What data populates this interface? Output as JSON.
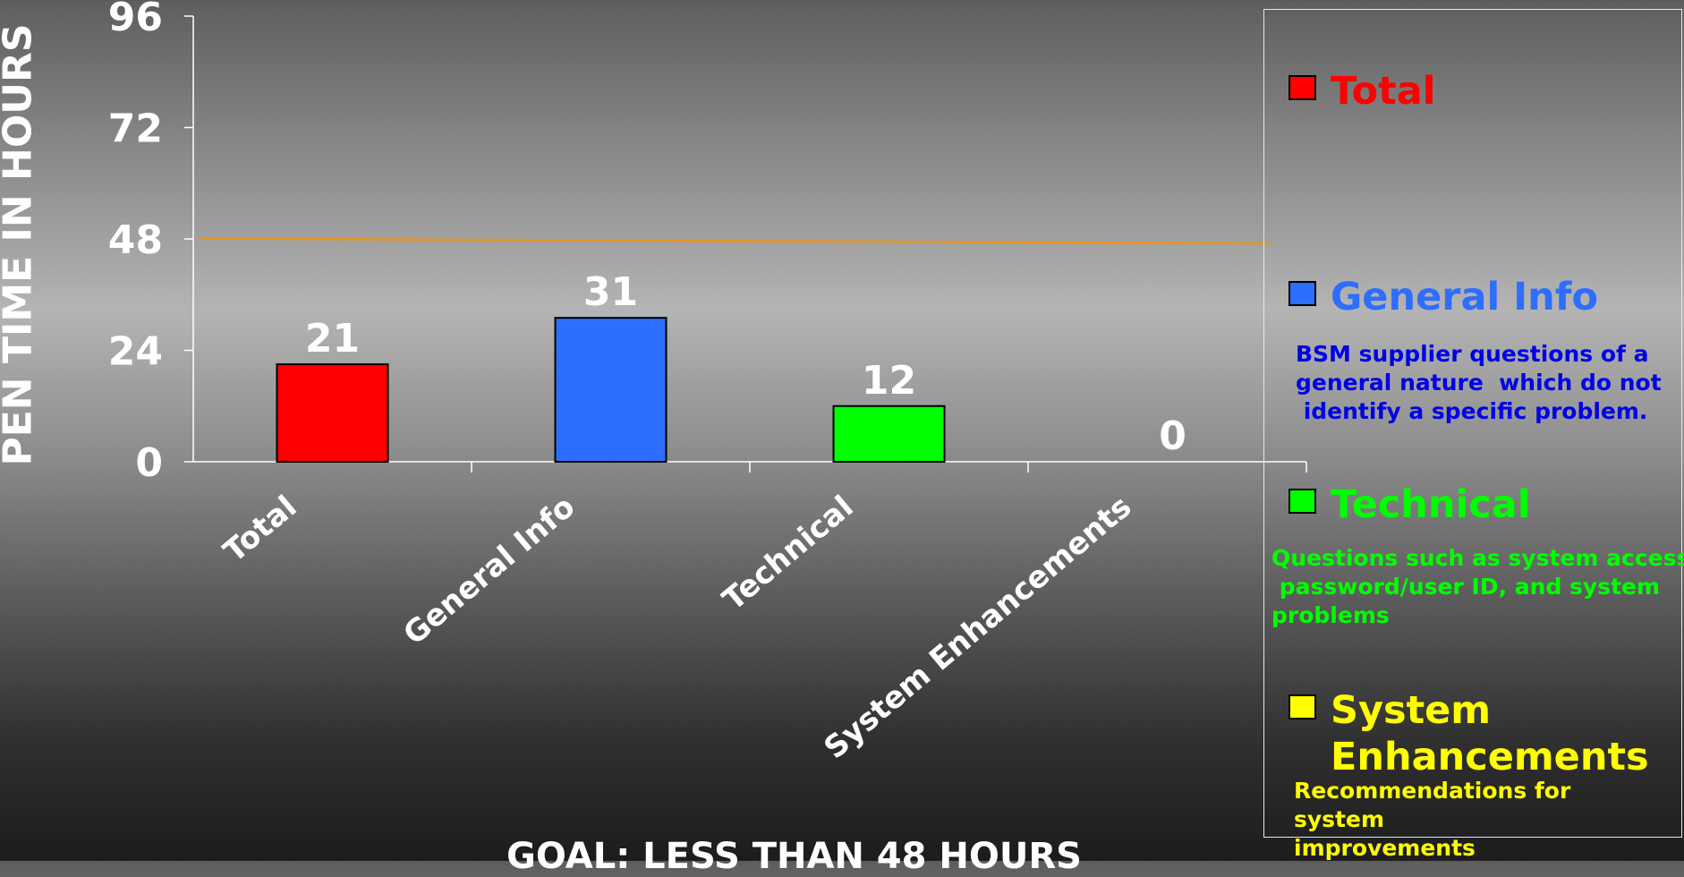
{
  "chart_data": {
    "type": "bar",
    "categories": [
      "Total",
      "General Info",
      "Technical",
      "System Enhancements"
    ],
    "values": [
      21,
      31,
      12,
      0
    ],
    "data_labels": [
      "21",
      "31",
      "12",
      "0"
    ],
    "colors": [
      "#ff0000",
      "#2d6eff",
      "#00ff00",
      "#ffff00"
    ],
    "ylim": [
      0,
      96
    ],
    "yticks": [
      "0",
      "24",
      "48",
      "72",
      "96"
    ],
    "ylabel": "PEN TIME IN HOURS",
    "goal_value": 48,
    "goal_line_color": "#e8931c",
    "grid": false,
    "legend_position": "right"
  },
  "legend": [
    {
      "label": "Total",
      "color": "#ff0000",
      "description": "",
      "desc_color": "#ff0000"
    },
    {
      "label": "General Info",
      "color": "#2d6eff",
      "description": "BSM supplier questions of a\ngeneral nature  which do not\n identify a specific problem.",
      "desc_color": "#0000e6"
    },
    {
      "label": "Technical",
      "color": "#00ff00",
      "description": "Questions such as system access,\n password/user ID, and system\nproblems",
      "desc_color": "#00ff00"
    },
    {
      "label": "System\nEnhancements",
      "color": "#ffff00",
      "description": "Recommendations for\nsystem\nimprovements",
      "desc_color": "#ffff00"
    }
  ],
  "goal_text": "GOAL:  LESS THAN 48 HOURS"
}
